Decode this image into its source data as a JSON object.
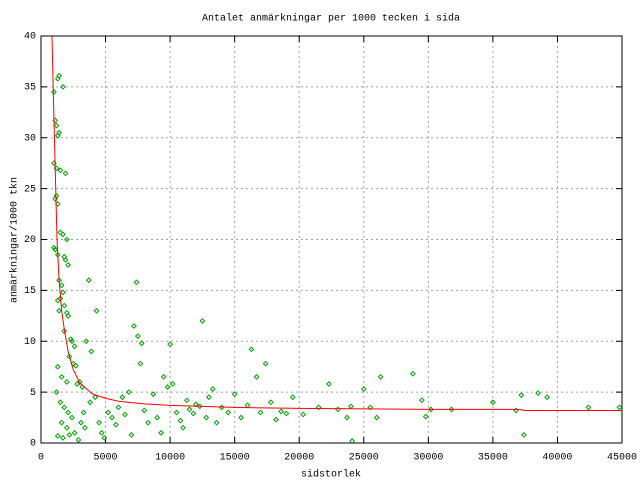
{
  "chart_data": {
    "type": "scatter",
    "title": "Antalet anmärkningar per 1000 tecken i sida",
    "x_label": "sidstorlek",
    "y_label": "anmärkningar/1000 tkn",
    "xlim": [
      0,
      45000
    ],
    "xticks": [
      0,
      5000,
      10000,
      15000,
      20000,
      25000,
      30000,
      35000,
      40000,
      45000
    ],
    "ylim": [
      0,
      40
    ],
    "yticks": [
      0,
      5,
      10,
      15,
      20,
      25,
      30,
      35,
      40
    ],
    "grid": true,
    "series": [
      {
        "style": "points",
        "color": "#00a000",
        "x": [
          1000,
          1300,
          1400,
          1700,
          1100,
          1200,
          1300,
          1400,
          1000,
          1200,
          1500,
          1900,
          1100,
          1300,
          1200,
          1000,
          1100,
          1300,
          1500,
          1700,
          2000,
          1800,
          1900,
          2100,
          1400,
          1600,
          1500,
          1300,
          1700,
          1800,
          1400,
          2000,
          2100,
          1800,
          2300,
          2400,
          2600,
          2200,
          2500,
          2700,
          1300,
          1600,
          2000,
          2800,
          3000,
          3200,
          3700,
          4300,
          3500,
          3900,
          1200,
          1500,
          1800,
          2100,
          2400,
          1600,
          2000,
          2600,
          1300,
          1700,
          2200,
          2900,
          3100,
          3400,
          3300,
          3800,
          4200,
          4500,
          4700,
          4900,
          5200,
          5500,
          5800,
          6000,
          6300,
          6500,
          6800,
          7000,
          7200,
          7400,
          7500,
          7700,
          7800,
          8000,
          8300,
          8700,
          9000,
          9300,
          9500,
          9800,
          10000,
          10200,
          10500,
          10800,
          11000,
          11300,
          11500,
          11800,
          12000,
          12300,
          12500,
          12800,
          13000,
          13300,
          13600,
          14000,
          14500,
          15000,
          15500,
          16000,
          16300,
          16700,
          17000,
          17400,
          17800,
          18200,
          18600,
          19000,
          19500,
          20300,
          21500,
          22300,
          23000,
          23700,
          24000,
          24100,
          25000,
          25500,
          26300,
          26000,
          28800,
          29500,
          29800,
          30200,
          31800,
          35000,
          36800,
          37200,
          37400,
          38500,
          39200,
          42400,
          44800
        ],
        "values": [
          34.5,
          35.8,
          36.1,
          35,
          31.7,
          31.2,
          30.2,
          30.5,
          27.5,
          27,
          26.8,
          26.5,
          24,
          23.5,
          24.3,
          19.2,
          19,
          18.5,
          20.7,
          20.5,
          20,
          18.3,
          18,
          17.5,
          16,
          15.5,
          14.2,
          14,
          14.8,
          13.5,
          13,
          12.8,
          12.5,
          11,
          10.2,
          10,
          9.5,
          8.5,
          7.8,
          7.6,
          7.5,
          6.5,
          6,
          5.8,
          6,
          5.5,
          16,
          13,
          10,
          9,
          5,
          4,
          3.5,
          3,
          2.5,
          2,
          1.5,
          1,
          0.7,
          0.5,
          0.8,
          0.3,
          2,
          1.5,
          3,
          4,
          4.5,
          2,
          1,
          0.5,
          3,
          2.5,
          1.8,
          3.5,
          4.5,
          2.8,
          5,
          0.8,
          11.5,
          15.8,
          10.5,
          7.8,
          9.8,
          3.2,
          2,
          4.8,
          2.5,
          1,
          6.5,
          5.5,
          9.7,
          5.8,
          3,
          2.2,
          1.5,
          4.2,
          3.3,
          2.9,
          3.8,
          3.6,
          12,
          2.5,
          4.5,
          5.3,
          2,
          3.5,
          3,
          4.8,
          2.5,
          3.7,
          9.2,
          6.5,
          3,
          7.8,
          4,
          2.3,
          3.1,
          2.9,
          4.5,
          2.8,
          3.5,
          5.8,
          3.3,
          2.5,
          3.6,
          0.2,
          5.3,
          3.5,
          6.5,
          2.5,
          6.8,
          4.2,
          2.6,
          3.3,
          3.3,
          4,
          3.2,
          4.7,
          0.8,
          4.9,
          4.5,
          3.5,
          3.5
        ]
      },
      {
        "style": "line",
        "color": "#ff0000",
        "x": [
          850,
          1000,
          1100,
          1240,
          1400,
          1600,
          1800,
          2100,
          2500,
          3000,
          4000,
          5000,
          6000,
          8000,
          10000,
          15000,
          20000,
          30000,
          37000,
          37500,
          45000
        ],
        "values": [
          40,
          32,
          27,
          20,
          16,
          13,
          11.2,
          9,
          7.2,
          5.9,
          4.8,
          4.4,
          4.1,
          3.85,
          3.7,
          3.5,
          3.4,
          3.3,
          3.3,
          3.2,
          3.2
        ]
      }
    ]
  }
}
